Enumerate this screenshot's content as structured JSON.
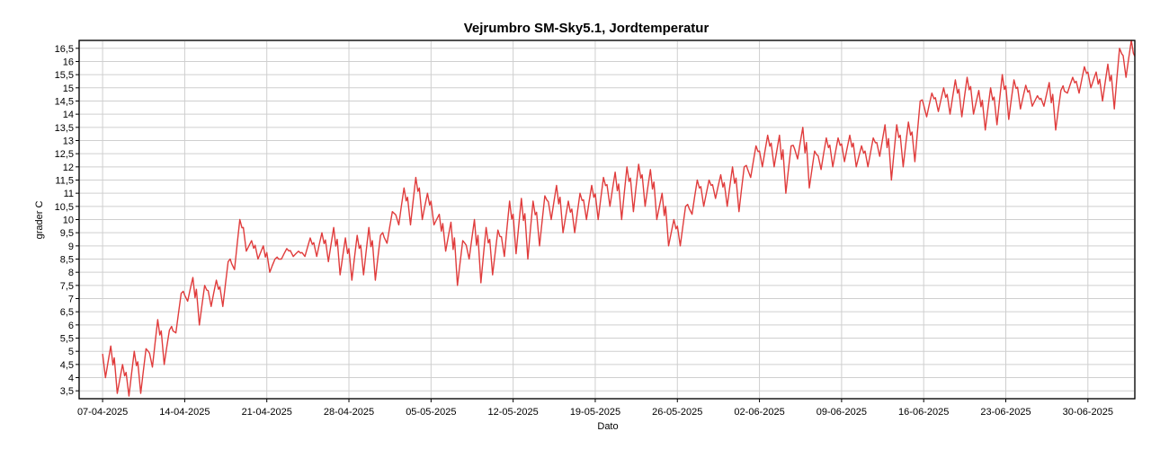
{
  "chart_data": {
    "type": "line",
    "title": "Vejrumbro SM-Sky5.1, Jordtemperatur",
    "xlabel": "Dato",
    "ylabel": "grader C",
    "ylim": [
      3.2,
      16.8
    ],
    "xlim": [
      "2025-04-05",
      "2025-07-04"
    ],
    "grid": true,
    "legend": "none",
    "x_ticks": [
      "07-04-2025",
      "14-04-2025",
      "21-04-2025",
      "28-04-2025",
      "05-05-2025",
      "12-05-2025",
      "19-05-2025",
      "26-05-2025",
      "02-06-2025",
      "09-06-2025",
      "16-06-2025",
      "23-06-2025",
      "30-06-2025"
    ],
    "y_ticks": [
      "3,5",
      "4",
      "4,5",
      "5",
      "5,5",
      "6",
      "6,5",
      "7",
      "7,5",
      "8",
      "8,5",
      "9",
      "9,5",
      "10",
      "10,5",
      "11",
      "11,5",
      "12",
      "12,5",
      "13",
      "13,5",
      "14",
      "14,5",
      "15",
      "15,5",
      "16",
      "16,5"
    ],
    "series": [
      {
        "color": "#e03c3c",
        "daily_max": [
          5.2,
          4.5,
          5.0,
          5.1,
          6.2,
          5.8,
          7.2,
          7.8,
          7.5,
          7.7,
          8.4,
          10.0,
          9.2,
          9.0,
          8.5,
          8.9,
          8.8,
          9.3,
          9.5,
          9.7,
          9.3,
          9.4,
          9.7,
          9.4,
          10.3,
          11.2,
          11.6,
          11.0,
          10.2,
          9.9,
          9.2,
          10.0,
          9.7,
          9.6,
          10.7,
          10.8,
          10.7,
          10.9,
          11.3,
          10.7,
          11.0,
          11.3,
          11.6,
          11.8,
          12.0,
          12.1,
          11.9,
          11.0,
          10.0,
          10.5,
          11.5,
          11.5,
          11.7,
          12.0,
          12.0,
          12.8,
          13.2,
          13.2,
          12.8,
          13.5,
          12.6,
          13.1,
          13.1,
          13.2,
          12.8,
          13.1,
          13.6,
          13.6,
          13.7,
          14.5,
          14.8,
          15.0,
          15.3,
          15.4,
          14.9,
          15.0,
          15.5,
          15.3,
          15.1,
          14.7,
          15.2,
          14.9,
          15.4,
          15.8,
          15.6,
          15.9,
          16.5,
          16.8
        ],
        "daily_min": [
          4.0,
          3.4,
          3.3,
          3.4,
          4.4,
          4.5,
          5.7,
          6.9,
          6.0,
          6.7,
          6.7,
          8.1,
          8.8,
          8.5,
          8.0,
          8.5,
          8.6,
          8.6,
          8.6,
          8.4,
          7.9,
          7.7,
          7.9,
          7.7,
          9.1,
          9.8,
          9.8,
          10.0,
          9.8,
          8.8,
          7.5,
          8.5,
          7.6,
          7.9,
          8.6,
          8.7,
          8.5,
          9.0,
          10.0,
          9.5,
          9.5,
          10.0,
          10.0,
          10.5,
          10.0,
          10.3,
          10.5,
          10.0,
          9.0,
          9.0,
          10.2,
          10.5,
          10.8,
          10.5,
          10.3,
          11.6,
          12.0,
          12.0,
          11.0,
          12.3,
          11.2,
          11.9,
          12.0,
          12.2,
          12.0,
          12.0,
          12.4,
          11.5,
          12.0,
          12.2,
          13.9,
          14.1,
          14.0,
          13.9,
          14.0,
          13.4,
          13.6,
          13.8,
          14.2,
          14.3,
          14.3,
          13.4,
          14.8,
          14.8,
          15.0,
          14.5,
          14.2,
          15.4
        ],
        "last_value": 16.2
      }
    ]
  }
}
